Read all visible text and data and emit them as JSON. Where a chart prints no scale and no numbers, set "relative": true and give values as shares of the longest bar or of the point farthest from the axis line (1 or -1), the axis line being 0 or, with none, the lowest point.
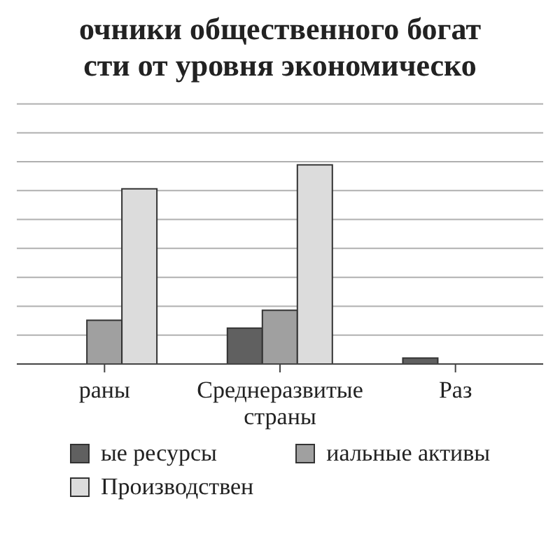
{
  "chart_data": {
    "type": "bar",
    "title": "очники общественного богат\nсти от уровня экономическо",
    "categories": [
      "раны",
      "Среднеразвитые страны",
      "Раз"
    ],
    "relative": true,
    "series": [
      {
        "name": "ые ресурсы",
        "color": "#606060",
        "values": [
          null,
          0.18,
          0.03
        ]
      },
      {
        "name": "иальные активы",
        "color": "#a0a0a0",
        "values": [
          0.22,
          0.27,
          null
        ]
      },
      {
        "name": "Производствен",
        "color": "#dcdcdc",
        "values": [
          0.88,
          1,
          null
        ]
      }
    ],
    "grid": "y",
    "legend": "bottom"
  }
}
